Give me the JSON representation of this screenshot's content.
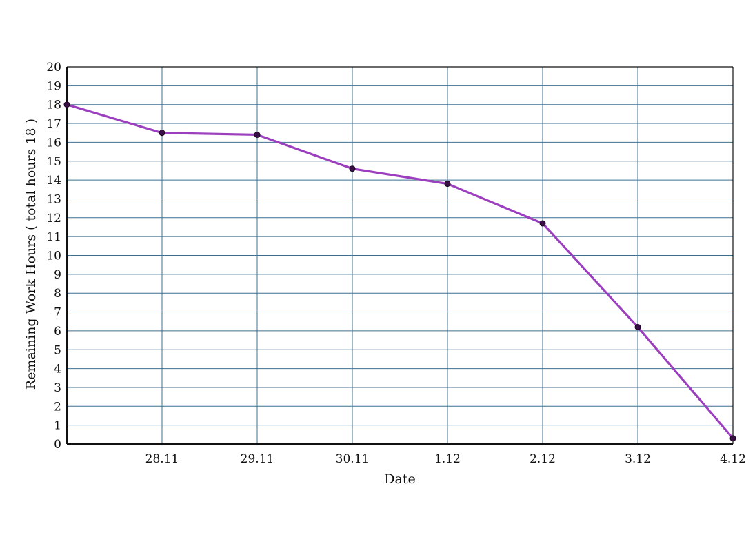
{
  "chart_data": {
    "type": "line",
    "xlabel": "Date",
    "ylabel": "Remaining Work Hours ( total hours 18 )",
    "x_categories": [
      "",
      "28.11",
      "29.11",
      "30.11",
      "1.12",
      "2.12",
      "3.12",
      "4.12"
    ],
    "y_ticks": [
      0,
      1,
      2,
      3,
      4,
      5,
      6,
      7,
      8,
      9,
      10,
      11,
      12,
      13,
      14,
      15,
      16,
      17,
      18,
      19,
      20
    ],
    "ylim": [
      0,
      20
    ],
    "grid": true,
    "series": [
      {
        "values": [
          18.0,
          16.5,
          16.4,
          14.6,
          13.8,
          11.7,
          6.2,
          0.3
        ]
      }
    ],
    "colors": {
      "line": "#9b3fbf",
      "marker": "#3a0f45",
      "grid": "#3f6f8f",
      "axis": "#111111"
    }
  }
}
